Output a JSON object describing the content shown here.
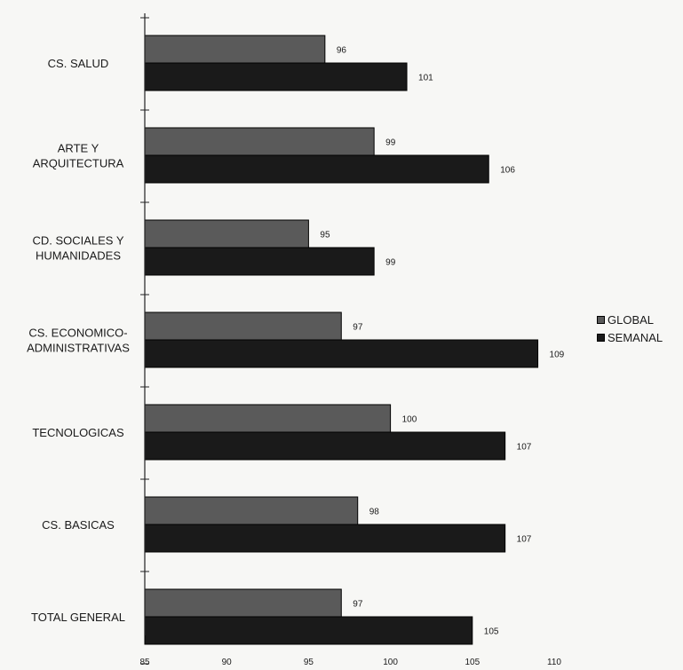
{
  "chart_data": {
    "type": "bar",
    "orientation": "horizontal",
    "categories": [
      "CS. SALUD",
      "ARTE Y ARQUITECTURA",
      "CD. SOCIALES Y HUMANIDADES",
      "CS. ECONOMICO-ADMINISTRATIVAS",
      "TECNOLOGICAS",
      "CS. BASICAS",
      "TOTAL GENERAL"
    ],
    "category_lines": [
      [
        "CS. SALUD"
      ],
      [
        "ARTE Y",
        "ARQUITECTURA"
      ],
      [
        "CD. SOCIALES Y",
        "HUMANIDADES"
      ],
      [
        "CS. ECONOMICO-",
        "ADMINISTRATIVAS"
      ],
      [
        "TECNOLOGICAS"
      ],
      [
        "CS. BASICAS"
      ],
      [
        "TOTAL GENERAL"
      ]
    ],
    "series": [
      {
        "name": "GLOBAL",
        "values": [
          96,
          99,
          95,
          97,
          100,
          98,
          97
        ],
        "color": "#5a5a5a"
      },
      {
        "name": "SEMANAL",
        "values": [
          101,
          106,
          99,
          109,
          107,
          107,
          105
        ],
        "color": "#1a1a1a"
      }
    ],
    "xlim": [
      85,
      110
    ],
    "xticks": [
      85,
      90,
      95,
      100,
      105,
      110
    ],
    "title": "",
    "xlabel": "",
    "ylabel": "",
    "legend_position": "right",
    "grid": false
  }
}
